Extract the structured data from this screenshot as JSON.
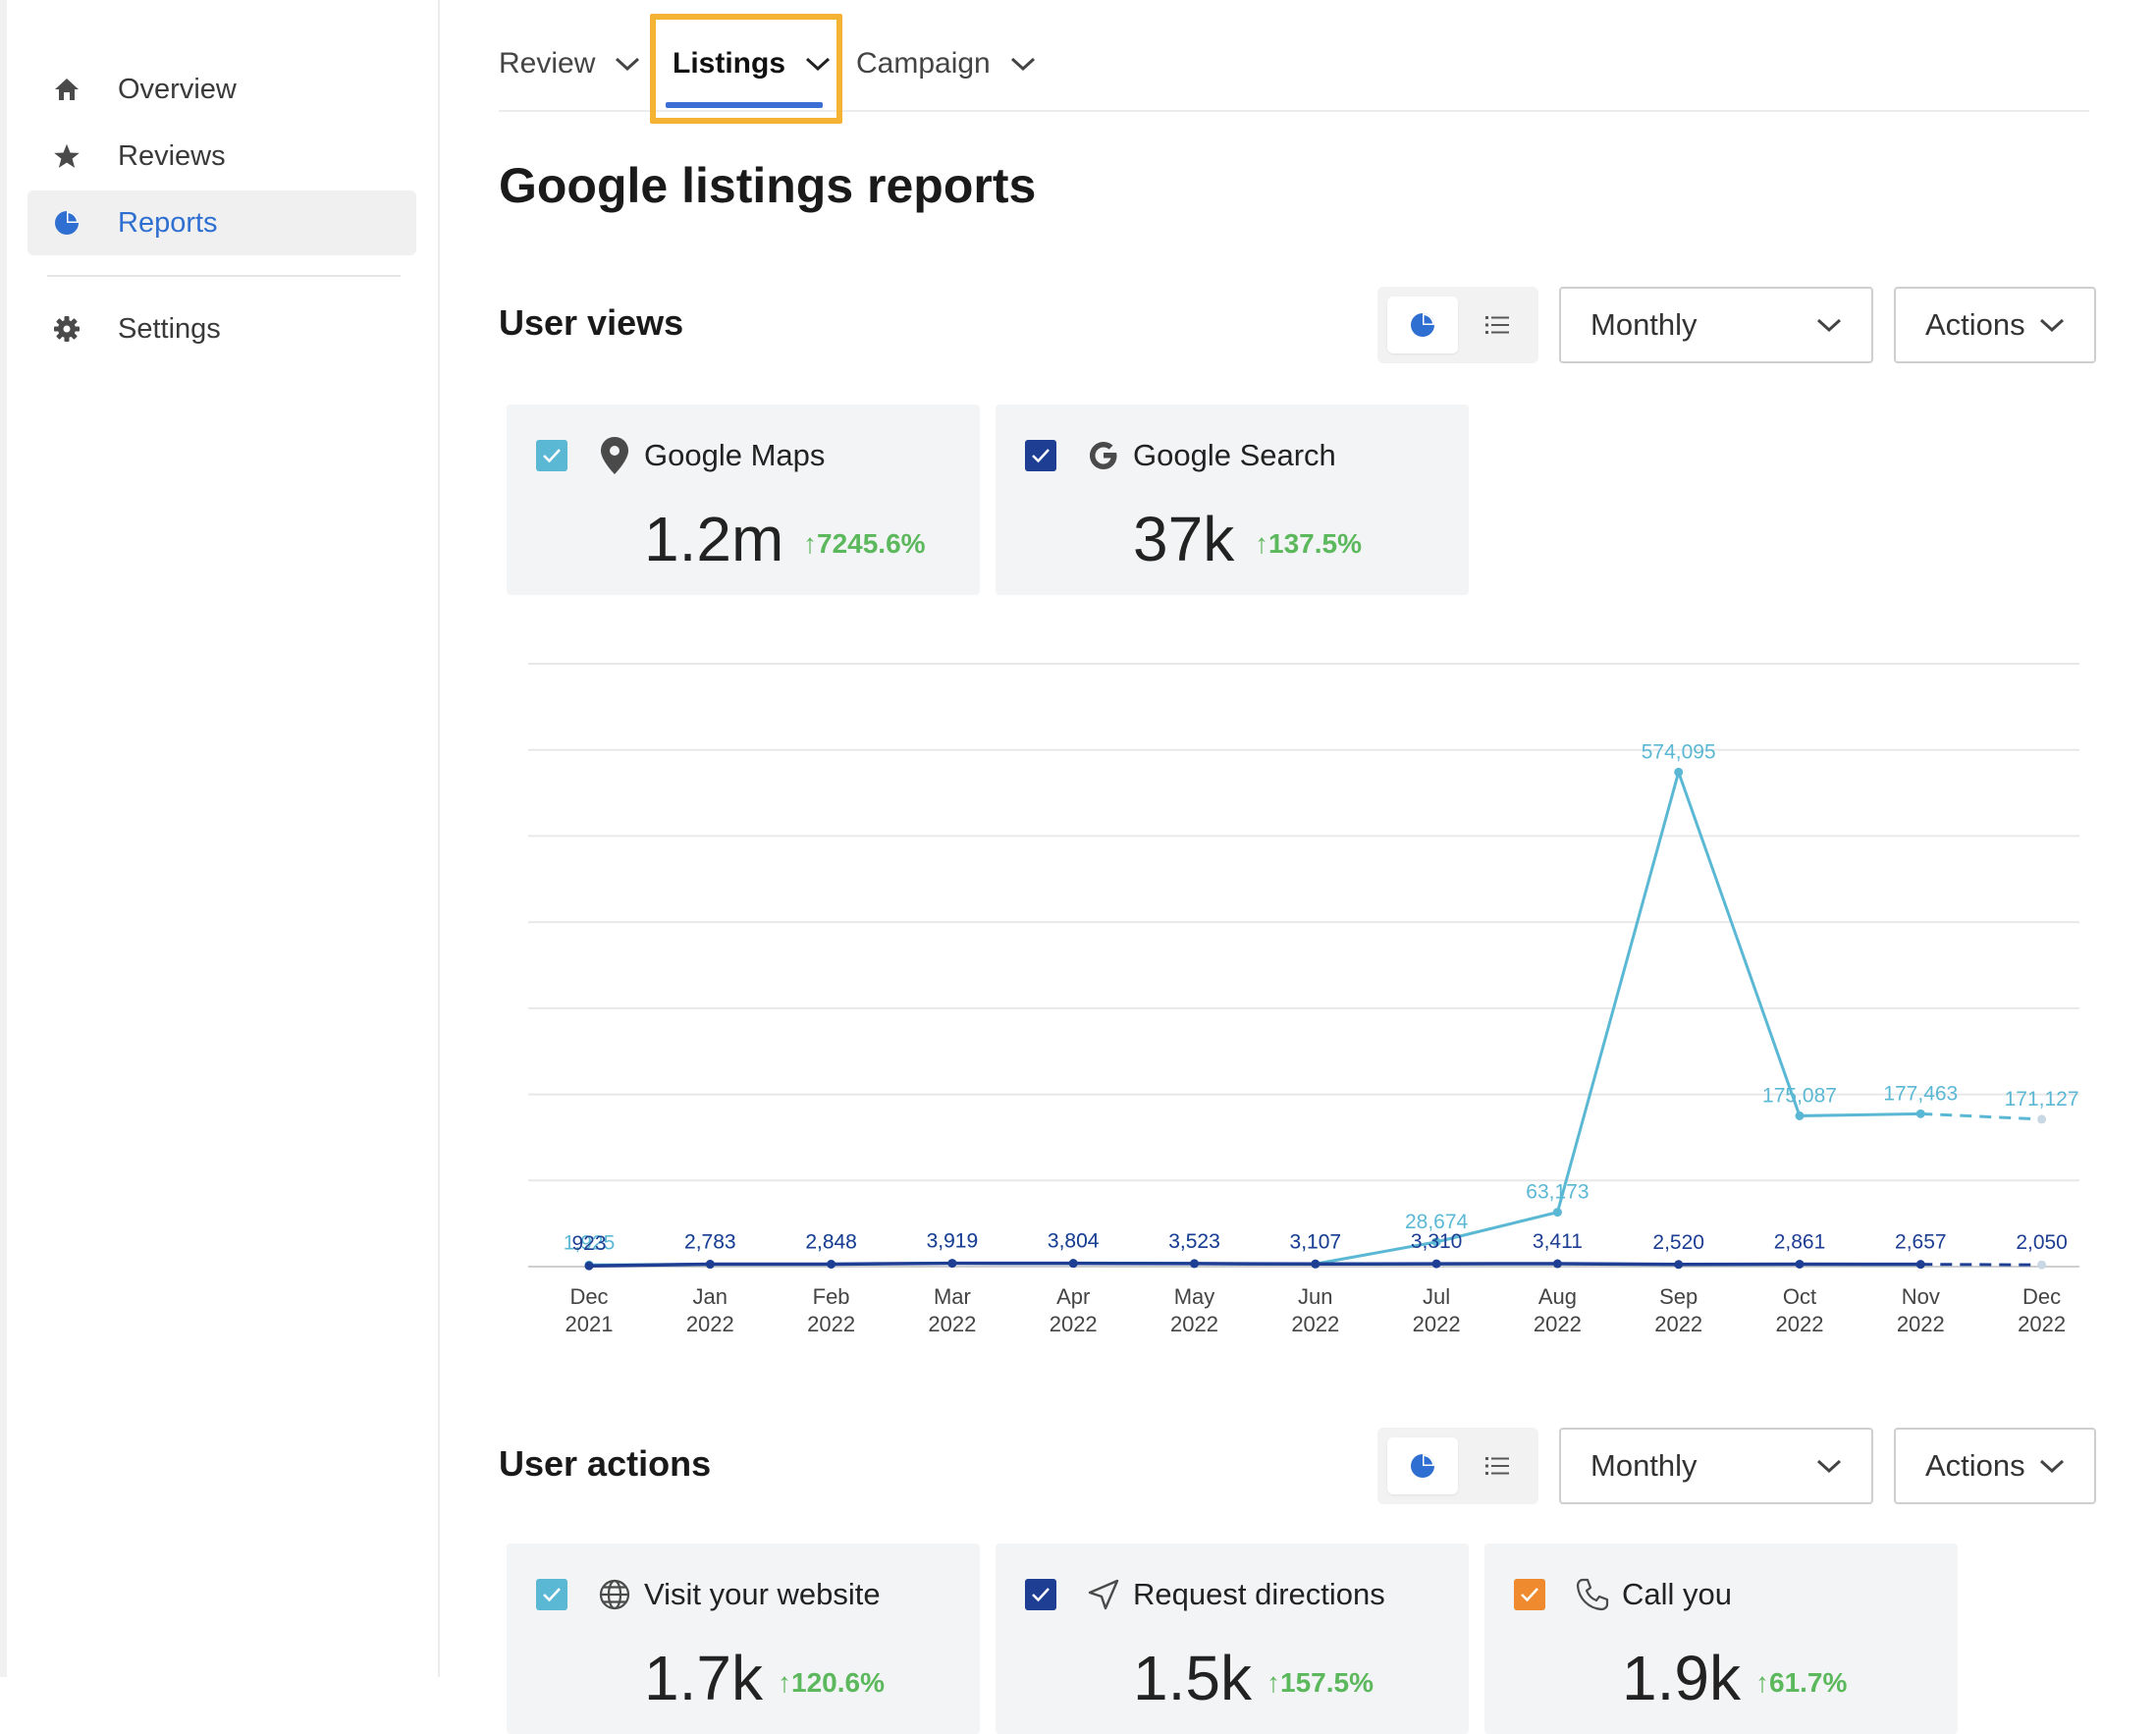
{
  "sidebar": {
    "items": [
      {
        "label": "Overview",
        "icon": "home-icon"
      },
      {
        "label": "Reviews",
        "icon": "star-icon"
      },
      {
        "label": "Reports",
        "icon": "pie-chart-icon",
        "active": true
      },
      {
        "label": "Settings",
        "icon": "gear-icon"
      }
    ]
  },
  "tabs": [
    {
      "label": "Review"
    },
    {
      "label": "Listings",
      "active": true
    },
    {
      "label": "Campaign"
    }
  ],
  "page": {
    "title": "Google listings reports"
  },
  "user_views": {
    "title": "User views",
    "period": "Monthly",
    "actions": "Actions",
    "cards": [
      {
        "label": "Google Maps",
        "icon": "map-pin-icon",
        "value": "1.2m",
        "delta": "7245.6%",
        "color": "#5bb8d4"
      },
      {
        "label": "Google Search",
        "icon": "google-g-icon",
        "value": "37k",
        "delta": "137.5%",
        "color": "#1d3e93"
      }
    ]
  },
  "user_actions": {
    "title": "User actions",
    "period": "Monthly",
    "actions": "Actions",
    "cards": [
      {
        "label": "Visit your website",
        "icon": "globe-icon",
        "value": "1.7k",
        "delta": "120.6%",
        "color": "#5bb8d4"
      },
      {
        "label": "Request directions",
        "icon": "navigation-arrow-icon",
        "value": "1.5k",
        "delta": "157.5%",
        "color": "#1d3e93"
      },
      {
        "label": "Call you",
        "icon": "phone-icon",
        "value": "1.9k",
        "delta": "61.7%",
        "color": "#ef8a2e"
      }
    ]
  },
  "chart_data": {
    "type": "line",
    "categories": [
      "Dec 2021",
      "Jan 2022",
      "Feb 2022",
      "Mar 2022",
      "Apr 2022",
      "May 2022",
      "Jun 2022",
      "Jul 2022",
      "Aug 2022",
      "Sep 2022",
      "Oct 2022",
      "Nov 2022",
      "Dec 2022"
    ],
    "series": [
      {
        "name": "Google Maps",
        "color": "#5bb8d4",
        "values": [
          1925,
          2783,
          2848,
          3919,
          3804,
          3523,
          3107,
          28674,
          63173,
          574095,
          175087,
          177463,
          171127
        ],
        "labels": [
          "1,925",
          "2,783",
          "2,848",
          "3,919",
          "3,804",
          "3,523",
          "3,107",
          "28,674",
          "63,173",
          "574,095",
          "175,087",
          "177,463",
          "171,127"
        ],
        "projected_last": true
      },
      {
        "name": "Google Search",
        "color": "#1d3e93",
        "values": [
          923,
          2783,
          2848,
          3919,
          3804,
          3523,
          3107,
          3310,
          3411,
          2520,
          2861,
          2657,
          2050
        ],
        "labels": [
          "923",
          "2,783",
          "2,848",
          "3,919",
          "3,804",
          "3,523",
          "3,107",
          "3,310",
          "3,411",
          "2,520",
          "2,861",
          "2,657",
          "2,050"
        ],
        "projected_last": true
      }
    ],
    "ylim": [
      0,
      700000
    ],
    "grid": true,
    "legend": "none"
  }
}
